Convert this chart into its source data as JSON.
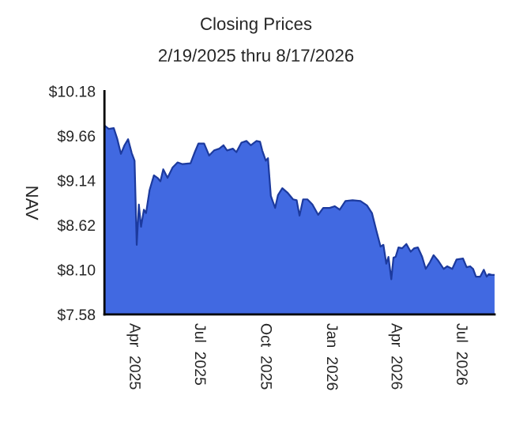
{
  "chart_data": {
    "type": "area",
    "title": "Closing Prices",
    "subtitle": "2/19/2025 thru 8/17/2026",
    "ylabel": "NAV",
    "x": [
      "2025-02-19",
      "2025-02-25",
      "2025-03-04",
      "2025-03-09",
      "2025-03-14",
      "2025-03-19",
      "2025-03-24",
      "2025-03-29",
      "2025-04-02",
      "2025-04-05",
      "2025-04-08",
      "2025-04-11",
      "2025-04-15",
      "2025-04-18",
      "2025-04-23",
      "2025-04-29",
      "2025-05-04",
      "2025-05-08",
      "2025-05-12",
      "2025-05-18",
      "2025-05-25",
      "2025-06-01",
      "2025-06-08",
      "2025-06-19",
      "2025-06-25",
      "2025-06-30",
      "2025-07-08",
      "2025-07-15",
      "2025-07-22",
      "2025-07-29",
      "2025-08-04",
      "2025-08-09",
      "2025-08-17",
      "2025-08-22",
      "2025-08-29",
      "2025-09-05",
      "2025-09-11",
      "2025-09-19",
      "2025-09-24",
      "2025-09-27",
      "2025-10-02",
      "2025-10-05",
      "2025-10-09",
      "2025-10-15",
      "2025-10-19",
      "2025-10-25",
      "2025-11-01",
      "2025-11-09",
      "2025-11-14",
      "2025-11-18",
      "2025-11-23",
      "2025-11-29",
      "2025-12-06",
      "2025-12-14",
      "2025-12-21",
      "2025-12-30",
      "2026-01-06",
      "2026-01-13",
      "2026-01-21",
      "2026-01-31",
      "2026-02-11",
      "2026-02-20",
      "2026-02-27",
      "2026-03-05",
      "2026-03-11",
      "2026-03-15",
      "2026-03-19",
      "2026-03-22",
      "2026-03-26",
      "2026-03-29",
      "2026-04-01",
      "2026-04-05",
      "2026-04-10",
      "2026-04-16",
      "2026-04-22",
      "2026-04-27",
      "2026-05-02",
      "2026-05-08",
      "2026-05-13",
      "2026-05-19",
      "2026-05-24",
      "2026-05-30",
      "2026-06-07",
      "2026-06-12",
      "2026-06-19",
      "2026-06-25",
      "2026-07-04",
      "2026-07-09",
      "2026-07-14",
      "2026-07-18",
      "2026-07-22",
      "2026-07-28",
      "2026-08-02",
      "2026-08-06",
      "2026-08-09",
      "2026-08-13",
      "2026-08-17"
    ],
    "values": [
      9.78,
      9.74,
      9.75,
      9.62,
      9.45,
      9.55,
      9.62,
      9.46,
      9.37,
      8.39,
      8.86,
      8.6,
      8.8,
      8.76,
      9.03,
      9.2,
      9.17,
      9.13,
      9.27,
      9.17,
      9.29,
      9.35,
      9.33,
      9.34,
      9.47,
      9.57,
      9.57,
      9.43,
      9.49,
      9.51,
      9.55,
      9.49,
      9.51,
      9.47,
      9.58,
      9.6,
      9.55,
      9.6,
      9.59,
      9.49,
      9.37,
      9.4,
      8.96,
      8.82,
      8.97,
      9.05,
      9.0,
      8.92,
      8.91,
      8.73,
      8.92,
      8.92,
      8.86,
      8.74,
      8.82,
      8.82,
      8.84,
      8.8,
      8.9,
      8.91,
      8.9,
      8.85,
      8.76,
      8.56,
      8.37,
      8.39,
      8.17,
      8.25,
      7.99,
      8.24,
      8.25,
      8.36,
      8.35,
      8.4,
      8.31,
      8.35,
      8.36,
      8.25,
      8.11,
      8.19,
      8.27,
      8.21,
      8.11,
      8.14,
      8.11,
      8.22,
      8.23,
      8.13,
      8.14,
      8.11,
      8.02,
      8.02,
      8.1,
      8.02,
      8.05,
      8.04,
      8.04
    ],
    "color": "#4169e1",
    "xlim": [
      "2025-02-19",
      "2026-08-17"
    ],
    "xticks": [
      {
        "value": "2025-04-01",
        "label": "Apr  2025"
      },
      {
        "value": "2025-07-01",
        "label": "Jul  2025"
      },
      {
        "value": "2025-10-01",
        "label": "Oct  2025"
      },
      {
        "value": "2026-01-01",
        "label": "Jan  2026"
      },
      {
        "value": "2026-04-01",
        "label": "Apr  2026"
      },
      {
        "value": "2026-07-01",
        "label": "Jul  2026"
      }
    ],
    "ylim": [
      7.58,
      10.18
    ],
    "yticks": [
      {
        "value": 7.58,
        "label": "$7.58"
      },
      {
        "value": 8.1,
        "label": "$8.10"
      },
      {
        "value": 8.62,
        "label": "$8.62"
      },
      {
        "value": 9.14,
        "label": "$9.14"
      },
      {
        "value": 9.66,
        "label": "$9.66"
      },
      {
        "value": 10.18,
        "label": "$10.18"
      }
    ],
    "grid": false
  }
}
